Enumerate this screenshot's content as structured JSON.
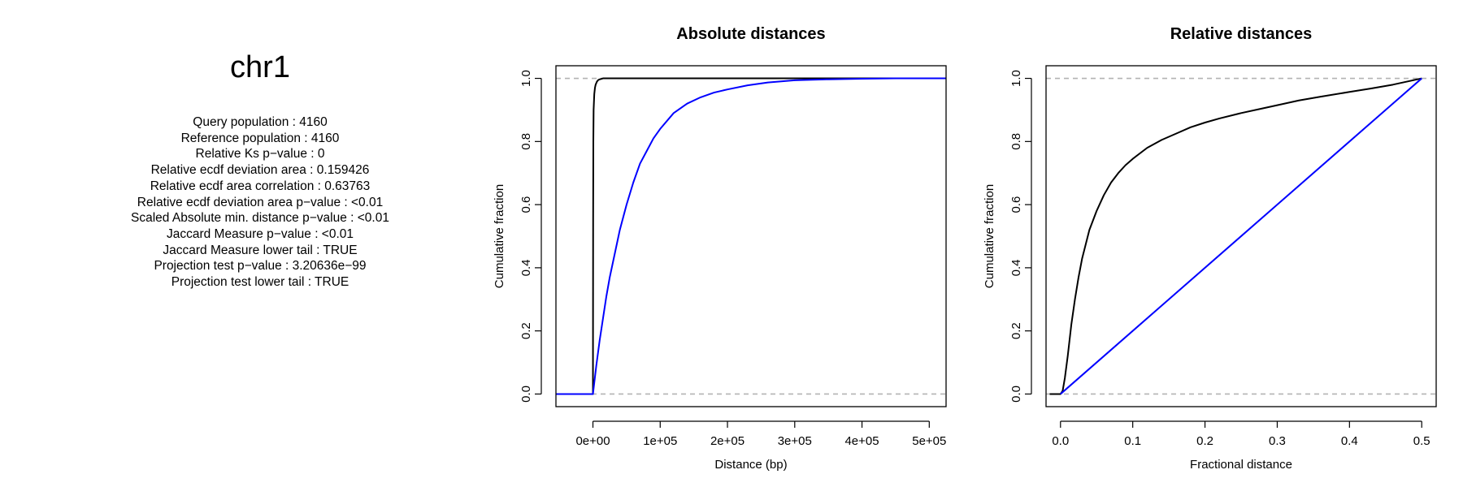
{
  "title": "chr1",
  "stats": [
    "Query population : 4160",
    "Reference population : 4160",
    "Relative Ks p−value : 0",
    "Relative ecdf deviation area : 0.159426",
    "Relative ecdf area correlation : 0.63763",
    "Relative ecdf deviation area p−value : <0.01",
    "Scaled Absolute min. distance p−value : <0.01",
    "Jaccard Measure p−value : <0.01",
    "Jaccard Measure lower tail : TRUE",
    "Projection test p−value : 3.20636e−99",
    "Projection test lower tail : TRUE"
  ],
  "chart_data": [
    {
      "type": "line",
      "title": "Absolute distances",
      "xlabel": "Distance (bp)",
      "ylabel": "Cumulative fraction",
      "xlim": [
        -55000,
        525000
      ],
      "ylim": [
        -0.04,
        1.04
      ],
      "x_ticks": [
        0,
        100000,
        200000,
        300000,
        400000,
        500000
      ],
      "x_tick_labels": [
        "0e+00",
        "1e+05",
        "2e+05",
        "3e+05",
        "4e+05",
        "5e+05"
      ],
      "y_ticks": [
        0,
        0.2,
        0.4,
        0.6,
        0.8,
        1
      ],
      "y_tick_labels": [
        "0.0",
        "0.2",
        "0.4",
        "0.6",
        "0.8",
        "1.0"
      ],
      "reference_lines": [
        0,
        1
      ],
      "series": [
        {
          "color": "#000000",
          "x": [
            -55000,
            0,
            300,
            600,
            1000,
            2000,
            3000,
            4000,
            5000,
            6000,
            8000,
            10000,
            12000,
            15000,
            20000,
            525000
          ],
          "y": [
            0,
            0,
            0.55,
            0.8,
            0.9,
            0.95,
            0.97,
            0.98,
            0.985,
            0.99,
            0.995,
            0.997,
            0.998,
            1.0,
            1.0,
            1.0
          ]
        },
        {
          "color": "#0000ff",
          "x": [
            -55000,
            0,
            5000,
            10000,
            15000,
            20000,
            25000,
            30000,
            40000,
            50000,
            60000,
            70000,
            80000,
            90000,
            100000,
            120000,
            140000,
            160000,
            180000,
            200000,
            230000,
            260000,
            300000,
            350000,
            400000,
            450000,
            525000
          ],
          "y": [
            0,
            0,
            0.09,
            0.17,
            0.24,
            0.31,
            0.37,
            0.42,
            0.52,
            0.6,
            0.67,
            0.73,
            0.77,
            0.81,
            0.84,
            0.89,
            0.92,
            0.94,
            0.955,
            0.965,
            0.978,
            0.987,
            0.994,
            0.997,
            0.999,
            1.0,
            1.0
          ]
        }
      ]
    },
    {
      "type": "line",
      "title": "Relative distances",
      "xlabel": "Fractional distance",
      "ylabel": "Cumulative fraction",
      "xlim": [
        -0.02,
        0.52
      ],
      "ylim": [
        -0.04,
        1.04
      ],
      "x_ticks": [
        0,
        0.1,
        0.2,
        0.3,
        0.4,
        0.5
      ],
      "x_tick_labels": [
        "0.0",
        "0.1",
        "0.2",
        "0.3",
        "0.4",
        "0.5"
      ],
      "y_ticks": [
        0,
        0.2,
        0.4,
        0.6,
        0.8,
        1
      ],
      "y_tick_labels": [
        "0.0",
        "0.2",
        "0.4",
        "0.6",
        "0.8",
        "1.0"
      ],
      "reference_lines": [
        0,
        1
      ],
      "series": [
        {
          "color": "#000000",
          "x": [
            -0.015,
            0.0,
            0.003,
            0.006,
            0.01,
            0.015,
            0.02,
            0.025,
            0.03,
            0.04,
            0.05,
            0.06,
            0.07,
            0.08,
            0.09,
            0.1,
            0.12,
            0.14,
            0.16,
            0.18,
            0.2,
            0.22,
            0.25,
            0.28,
            0.3,
            0.33,
            0.36,
            0.4,
            0.43,
            0.46,
            0.48,
            0.5
          ],
          "y": [
            0,
            0,
            0.01,
            0.05,
            0.12,
            0.22,
            0.3,
            0.37,
            0.43,
            0.52,
            0.58,
            0.63,
            0.67,
            0.7,
            0.725,
            0.745,
            0.78,
            0.805,
            0.825,
            0.845,
            0.86,
            0.873,
            0.89,
            0.905,
            0.915,
            0.93,
            0.942,
            0.957,
            0.968,
            0.98,
            0.99,
            1.0
          ]
        },
        {
          "color": "#0000ff",
          "x": [
            0,
            0.5
          ],
          "y": [
            0,
            1
          ]
        }
      ]
    }
  ]
}
